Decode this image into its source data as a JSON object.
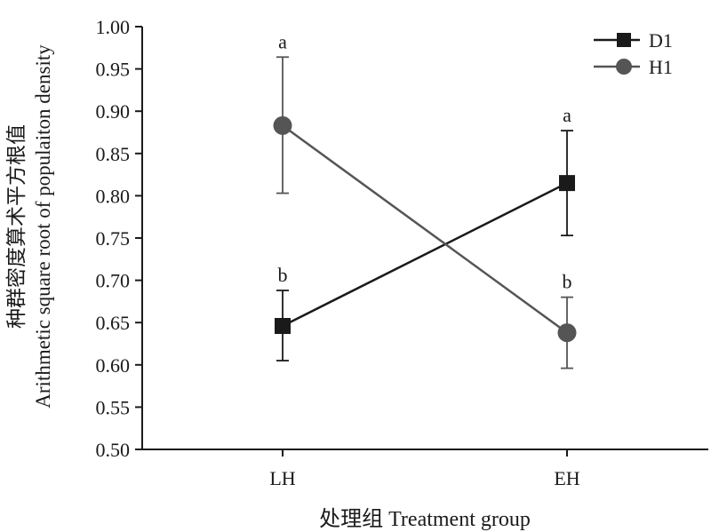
{
  "chart_data": {
    "type": "line",
    "categories": [
      "LH",
      "EH"
    ],
    "xlabel": "处理组 Treatment group",
    "ylabel_cn": "种群密度算术平方根值",
    "ylabel_en": "Arithmetic square root of populaiton density",
    "ylim": [
      0.5,
      1.0
    ],
    "yticks": [
      "0.50",
      "0.55",
      "0.60",
      "0.65",
      "0.70",
      "0.75",
      "0.80",
      "0.85",
      "0.90",
      "0.95",
      "1.00"
    ],
    "grid": false,
    "legend_position": "top-right",
    "series": [
      {
        "name": "D1",
        "marker": "square",
        "color": "#1a1a1a",
        "values": [
          0.646,
          0.815
        ],
        "error_low": [
          0.605,
          0.753
        ],
        "error_high": [
          0.688,
          0.877
        ],
        "letters": [
          "b",
          "a"
        ]
      },
      {
        "name": "H1",
        "marker": "circle",
        "color": "#555555",
        "values": [
          0.883,
          0.638
        ],
        "error_low": [
          0.803,
          0.596
        ],
        "error_high": [
          0.964,
          0.68
        ],
        "letters": [
          "a",
          "b"
        ]
      }
    ]
  }
}
